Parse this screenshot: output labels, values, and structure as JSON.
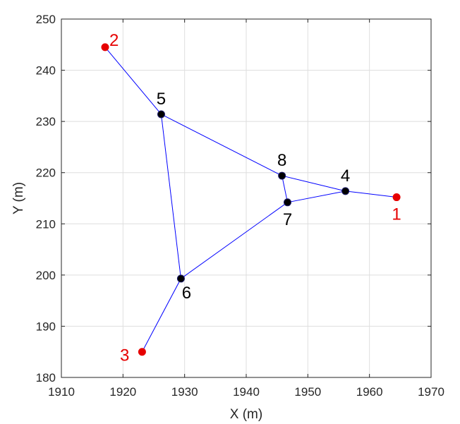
{
  "chart_data": {
    "type": "scatter",
    "title": "",
    "xlabel": "X (m)",
    "ylabel": "Y (m)",
    "xlim": [
      1910,
      1970
    ],
    "ylim": [
      180,
      250
    ],
    "xticks": [
      1910,
      1920,
      1930,
      1940,
      1950,
      1960,
      1970
    ],
    "yticks": [
      180,
      190,
      200,
      210,
      220,
      230,
      240,
      250
    ],
    "grid": true,
    "colors": {
      "anchor": "#e60000",
      "node": "#000000",
      "node_edge": "#1a1a66",
      "edge": "#0000ff"
    },
    "anchors": [
      {
        "id": "1",
        "x": 1964.4,
        "y": 215.2,
        "label_pos": "below"
      },
      {
        "id": "2",
        "x": 1917.1,
        "y": 244.5,
        "label_pos": "right"
      },
      {
        "id": "3",
        "x": 1923.1,
        "y": 185.0,
        "label_pos": "left"
      }
    ],
    "nodes": [
      {
        "id": "4",
        "x": 1956.1,
        "y": 216.4,
        "label_pos": "above"
      },
      {
        "id": "5",
        "x": 1926.2,
        "y": 231.4,
        "label_pos": "above"
      },
      {
        "id": "6",
        "x": 1929.4,
        "y": 199.3,
        "label_pos": "below-right"
      },
      {
        "id": "7",
        "x": 1946.7,
        "y": 214.2,
        "label_pos": "below"
      },
      {
        "id": "8",
        "x": 1945.8,
        "y": 219.4,
        "label_pos": "above"
      }
    ],
    "edges": [
      [
        "2",
        "5"
      ],
      [
        "5",
        "8"
      ],
      [
        "8",
        "4"
      ],
      [
        "4",
        "1"
      ],
      [
        "8",
        "7"
      ],
      [
        "7",
        "4"
      ],
      [
        "5",
        "6"
      ],
      [
        "6",
        "7"
      ],
      [
        "6",
        "3"
      ]
    ]
  }
}
